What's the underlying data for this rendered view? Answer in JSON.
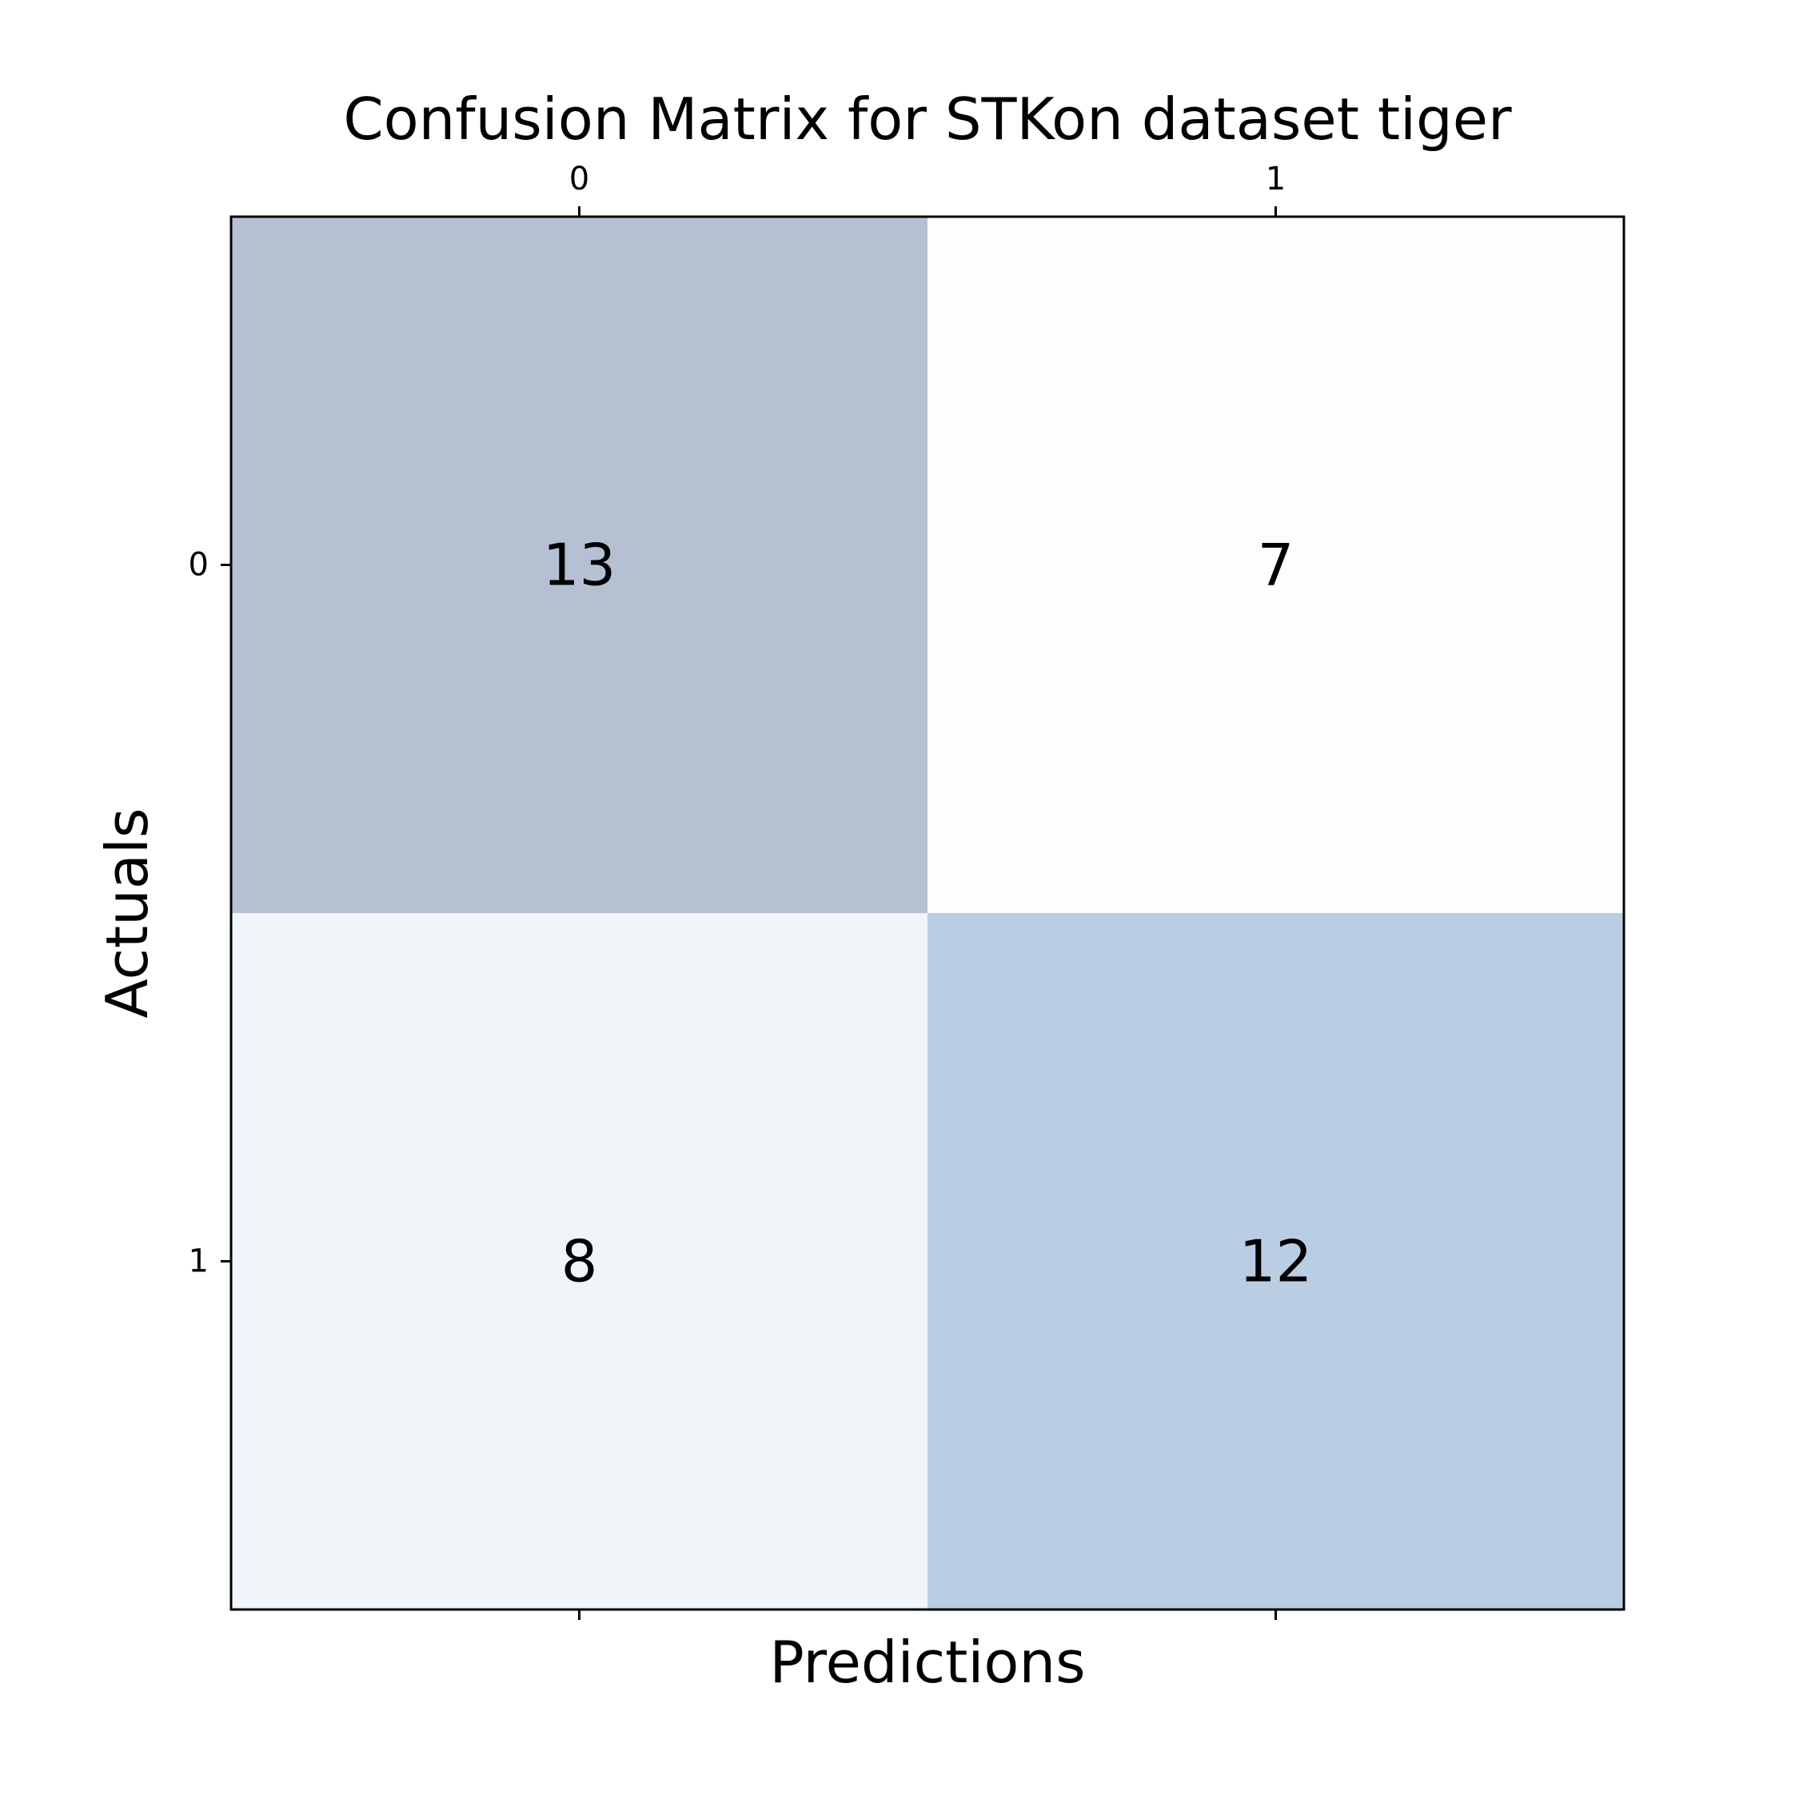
{
  "chart_data": {
    "type": "heatmap",
    "title": "Confusion Matrix for STKon dataset tiger",
    "xlabel": "Predictions",
    "ylabel": "Actuals",
    "x_categories": [
      "0",
      "1"
    ],
    "y_categories": [
      "0",
      "1"
    ],
    "x_ticks_position": "top",
    "matrix": [
      [
        13,
        7
      ],
      [
        8,
        12
      ]
    ],
    "cell_colors": [
      [
        "#b5c1d3",
        "#fcfdfe"
      ],
      [
        "#f0f5fa",
        "#b9cee3"
      ]
    ],
    "grid": false
  }
}
